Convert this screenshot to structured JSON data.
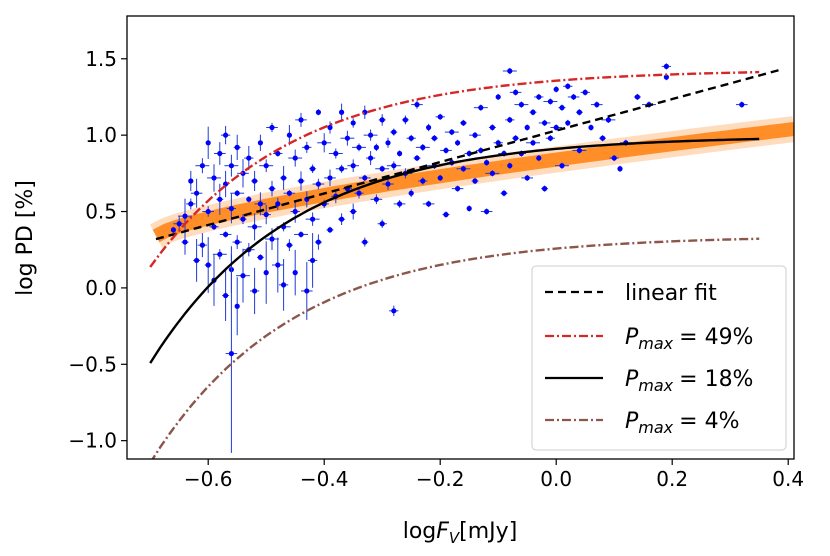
{
  "chart_data": {
    "type": "scatter",
    "title": "",
    "xlabel_prefix": "log",
    "xlabel_var": "F",
    "xlabel_sub": "V",
    "xlabel_unit": "[mJy]",
    "ylabel": "log PD [%]",
    "xlim": [
      -0.74,
      0.41
    ],
    "ylim": [
      -1.12,
      1.78
    ],
    "grid": false,
    "legend_position": "lower-right",
    "x_ticks": [
      -0.6,
      -0.4,
      -0.2,
      0.0,
      0.2,
      0.4
    ],
    "x_tick_labels": [
      "−0.6",
      "−0.4",
      "−0.2",
      "0.0",
      "0.2",
      "0.4"
    ],
    "y_ticks": [
      -1.0,
      -0.5,
      0.0,
      0.5,
      1.0,
      1.5
    ],
    "y_tick_labels": [
      "−1.0",
      "−0.5",
      "0.0",
      "0.5",
      "1.0",
      "1.5"
    ],
    "legend": [
      {
        "label": "linear fit",
        "color": "#000000",
        "dash": "8,5",
        "type": "line"
      },
      {
        "label_var": "P",
        "label_sub": "max",
        "label_value": "= 49%",
        "color": "#d62728",
        "dash": "9,3,2,3",
        "type": "line"
      },
      {
        "label_var": "P",
        "label_sub": "max",
        "label_value": "= 18%",
        "color": "#000000",
        "dash": "",
        "type": "line"
      },
      {
        "label_var": "P",
        "label_sub": "max",
        "label_value": "= 4%",
        "color": "#8c564b",
        "dash": "9,3,2,3",
        "type": "line"
      }
    ],
    "series": [
      {
        "name": "linear fit",
        "color": "#000000",
        "style": "dashed",
        "x_range": [
          -0.69,
          0.39
        ],
        "slope": 1.03,
        "intercept": 1.03
      },
      {
        "name": "P_max = 49%",
        "color": "#d62728",
        "style": "dashdot",
        "pmax_log": 1.69,
        "x_range": [
          -0.7,
          0.35
        ]
      },
      {
        "name": "P_max = 18%",
        "color": "#000000",
        "style": "solid",
        "pmax_log": 1.255,
        "x_range": [
          -0.7,
          0.35
        ]
      },
      {
        "name": "P_max = 4%",
        "color": "#8c564b",
        "style": "dashdot",
        "pmax_log": 0.602,
        "x_range": [
          -0.7,
          0.35
        ]
      },
      {
        "name": "orange band",
        "color": "#ff7f0e",
        "style": "band",
        "x_range": [
          -0.69,
          0.41
        ],
        "start": 0.34,
        "end": 1.04
      }
    ],
    "scatter_points": [
      [
        -0.66,
        0.38
      ],
      [
        -0.65,
        0.42
      ],
      [
        -0.64,
        0.3
      ],
      [
        -0.64,
        0.47
      ],
      [
        -0.63,
        0.55
      ],
      [
        -0.63,
        0.7
      ],
      [
        -0.62,
        0.62
      ],
      [
        -0.62,
        0.18
      ],
      [
        -0.61,
        0.8
      ],
      [
        -0.61,
        0.28
      ],
      [
        -0.6,
        0.95
      ],
      [
        -0.6,
        0.5
      ],
      [
        -0.6,
        0.15
      ],
      [
        -0.59,
        0.72
      ],
      [
        -0.59,
        0.4
      ],
      [
        -0.59,
        0.05
      ],
      [
        -0.58,
        0.88
      ],
      [
        -0.58,
        0.58
      ],
      [
        -0.58,
        0.22
      ],
      [
        -0.57,
        1.0
      ],
      [
        -0.57,
        0.68
      ],
      [
        -0.57,
        0.35
      ],
      [
        -0.57,
        -0.05
      ],
      [
        -0.56,
        0.8
      ],
      [
        -0.56,
        0.52
      ],
      [
        -0.56,
        0.12
      ],
      [
        -0.56,
        -0.43
      ],
      [
        -0.55,
        0.92
      ],
      [
        -0.55,
        0.62
      ],
      [
        -0.55,
        0.3
      ],
      [
        -0.55,
        -0.12
      ],
      [
        -0.54,
        0.75
      ],
      [
        -0.54,
        0.45
      ],
      [
        -0.54,
        0.08
      ],
      [
        -0.53,
        0.85
      ],
      [
        -0.53,
        0.58
      ],
      [
        -0.53,
        0.25
      ],
      [
        -0.52,
        0.7
      ],
      [
        -0.52,
        0.4
      ],
      [
        -0.52,
        -0.02
      ],
      [
        -0.51,
        0.95
      ],
      [
        -0.51,
        0.55
      ],
      [
        -0.51,
        0.2
      ],
      [
        -0.5,
        0.8
      ],
      [
        -0.5,
        0.48
      ],
      [
        -0.5,
        0.1
      ],
      [
        -0.49,
        1.05
      ],
      [
        -0.49,
        0.65
      ],
      [
        -0.49,
        0.32
      ],
      [
        -0.48,
        0.88
      ],
      [
        -0.48,
        0.55
      ],
      [
        -0.48,
        0.15
      ],
      [
        -0.47,
        0.72
      ],
      [
        -0.47,
        0.4
      ],
      [
        -0.47,
        0.02
      ],
      [
        -0.46,
        1.0
      ],
      [
        -0.46,
        0.62
      ],
      [
        -0.46,
        0.28
      ],
      [
        -0.45,
        0.85
      ],
      [
        -0.45,
        0.5
      ],
      [
        -0.45,
        0.1
      ],
      [
        -0.44,
        1.1
      ],
      [
        -0.44,
        0.7
      ],
      [
        -0.44,
        0.35
      ],
      [
        -0.43,
        0.92
      ],
      [
        -0.43,
        0.58
      ],
      [
        -0.43,
        -0.02
      ],
      [
        -0.42,
        0.78
      ],
      [
        -0.42,
        0.45
      ],
      [
        -0.42,
        0.18
      ],
      [
        -0.41,
        1.15
      ],
      [
        -0.41,
        0.68
      ],
      [
        -0.41,
        0.3
      ],
      [
        -0.4,
        0.95
      ],
      [
        -0.4,
        0.55
      ],
      [
        -0.39,
        1.05
      ],
      [
        -0.39,
        0.72
      ],
      [
        -0.39,
        0.38
      ],
      [
        -0.38,
        0.88
      ],
      [
        -0.38,
        0.6
      ],
      [
        -0.37,
        1.15
      ],
      [
        -0.37,
        0.78
      ],
      [
        -0.37,
        0.45
      ],
      [
        -0.36,
        0.98
      ],
      [
        -0.36,
        0.65
      ],
      [
        -0.35,
        1.08
      ],
      [
        -0.35,
        0.8
      ],
      [
        -0.35,
        0.5
      ],
      [
        -0.34,
        0.92
      ],
      [
        -0.34,
        0.62
      ],
      [
        -0.33,
        1.15
      ],
      [
        -0.33,
        0.72
      ],
      [
        -0.33,
        0.3
      ],
      [
        -0.32,
        1.0
      ],
      [
        -0.32,
        0.85
      ],
      [
        -0.31,
        0.92
      ],
      [
        -0.31,
        0.58
      ],
      [
        -0.3,
        1.1
      ],
      [
        -0.3,
        0.78
      ],
      [
        -0.3,
        0.42
      ],
      [
        -0.29,
        0.95
      ],
      [
        -0.29,
        0.68
      ],
      [
        -0.28,
        1.02
      ],
      [
        -0.28,
        0.8
      ],
      [
        -0.28,
        -0.15
      ],
      [
        -0.27,
        0.88
      ],
      [
        -0.27,
        0.55
      ],
      [
        -0.26,
        1.1
      ],
      [
        -0.26,
        0.75
      ],
      [
        -0.25,
        0.98
      ],
      [
        -0.25,
        0.62
      ],
      [
        -0.24,
        1.2
      ],
      [
        -0.24,
        0.85
      ],
      [
        -0.23,
        0.92
      ],
      [
        -0.23,
        0.7
      ],
      [
        -0.22,
        1.05
      ],
      [
        -0.22,
        0.55
      ],
      [
        -0.21,
        0.98
      ],
      [
        -0.21,
        0.8
      ],
      [
        -0.2,
        1.12
      ],
      [
        -0.2,
        0.72
      ],
      [
        -0.19,
        0.9
      ],
      [
        -0.19,
        0.48
      ],
      [
        -0.18,
        1.02
      ],
      [
        -0.18,
        0.82
      ],
      [
        -0.17,
        0.95
      ],
      [
        -0.17,
        0.65
      ],
      [
        -0.16,
        1.08
      ],
      [
        -0.16,
        0.78
      ],
      [
        -0.15,
        0.88
      ],
      [
        -0.15,
        0.52
      ],
      [
        -0.14,
        1.0
      ],
      [
        -0.14,
        0.7
      ],
      [
        -0.13,
        1.18
      ],
      [
        -0.13,
        0.9
      ],
      [
        -0.12,
        0.82
      ],
      [
        -0.12,
        0.5
      ],
      [
        -0.11,
        1.05
      ],
      [
        -0.11,
        0.75
      ],
      [
        -0.1,
        0.95
      ],
      [
        -0.1,
        1.25
      ],
      [
        -0.09,
        0.88
      ],
      [
        -0.09,
        0.62
      ],
      [
        -0.08,
        1.42
      ],
      [
        -0.08,
        1.1
      ],
      [
        -0.08,
        0.8
      ],
      [
        -0.07,
        1.28
      ],
      [
        -0.07,
        0.98
      ],
      [
        -0.06,
        1.2
      ],
      [
        -0.06,
        0.88
      ],
      [
        -0.05,
        1.05
      ],
      [
        -0.05,
        0.72
      ],
      [
        -0.04,
        1.15
      ],
      [
        -0.04,
        0.95
      ],
      [
        -0.03,
        1.25
      ],
      [
        -0.03,
        0.85
      ],
      [
        -0.02,
        1.08
      ],
      [
        -0.02,
        0.65
      ],
      [
        -0.01,
        1.22
      ],
      [
        -0.01,
        0.98
      ],
      [
        0.0,
        1.3
      ],
      [
        0.0,
        1.05
      ],
      [
        0.01,
        1.18
      ],
      [
        0.01,
        0.8
      ],
      [
        0.02,
        1.32
      ],
      [
        0.02,
        1.08
      ],
      [
        0.03,
        1.25
      ],
      [
        0.04,
        1.15
      ],
      [
        0.04,
        0.9
      ],
      [
        0.05,
        1.28
      ],
      [
        0.06,
        1.05
      ],
      [
        0.07,
        1.2
      ],
      [
        0.08,
        0.98
      ],
      [
        0.09,
        1.1
      ],
      [
        0.1,
        0.85
      ],
      [
        0.11,
        0.78
      ],
      [
        0.12,
        0.95
      ],
      [
        0.14,
        1.25
      ],
      [
        0.16,
        1.2
      ],
      [
        0.19,
        1.45
      ],
      [
        0.19,
        1.38
      ],
      [
        0.32,
        1.2
      ]
    ]
  }
}
